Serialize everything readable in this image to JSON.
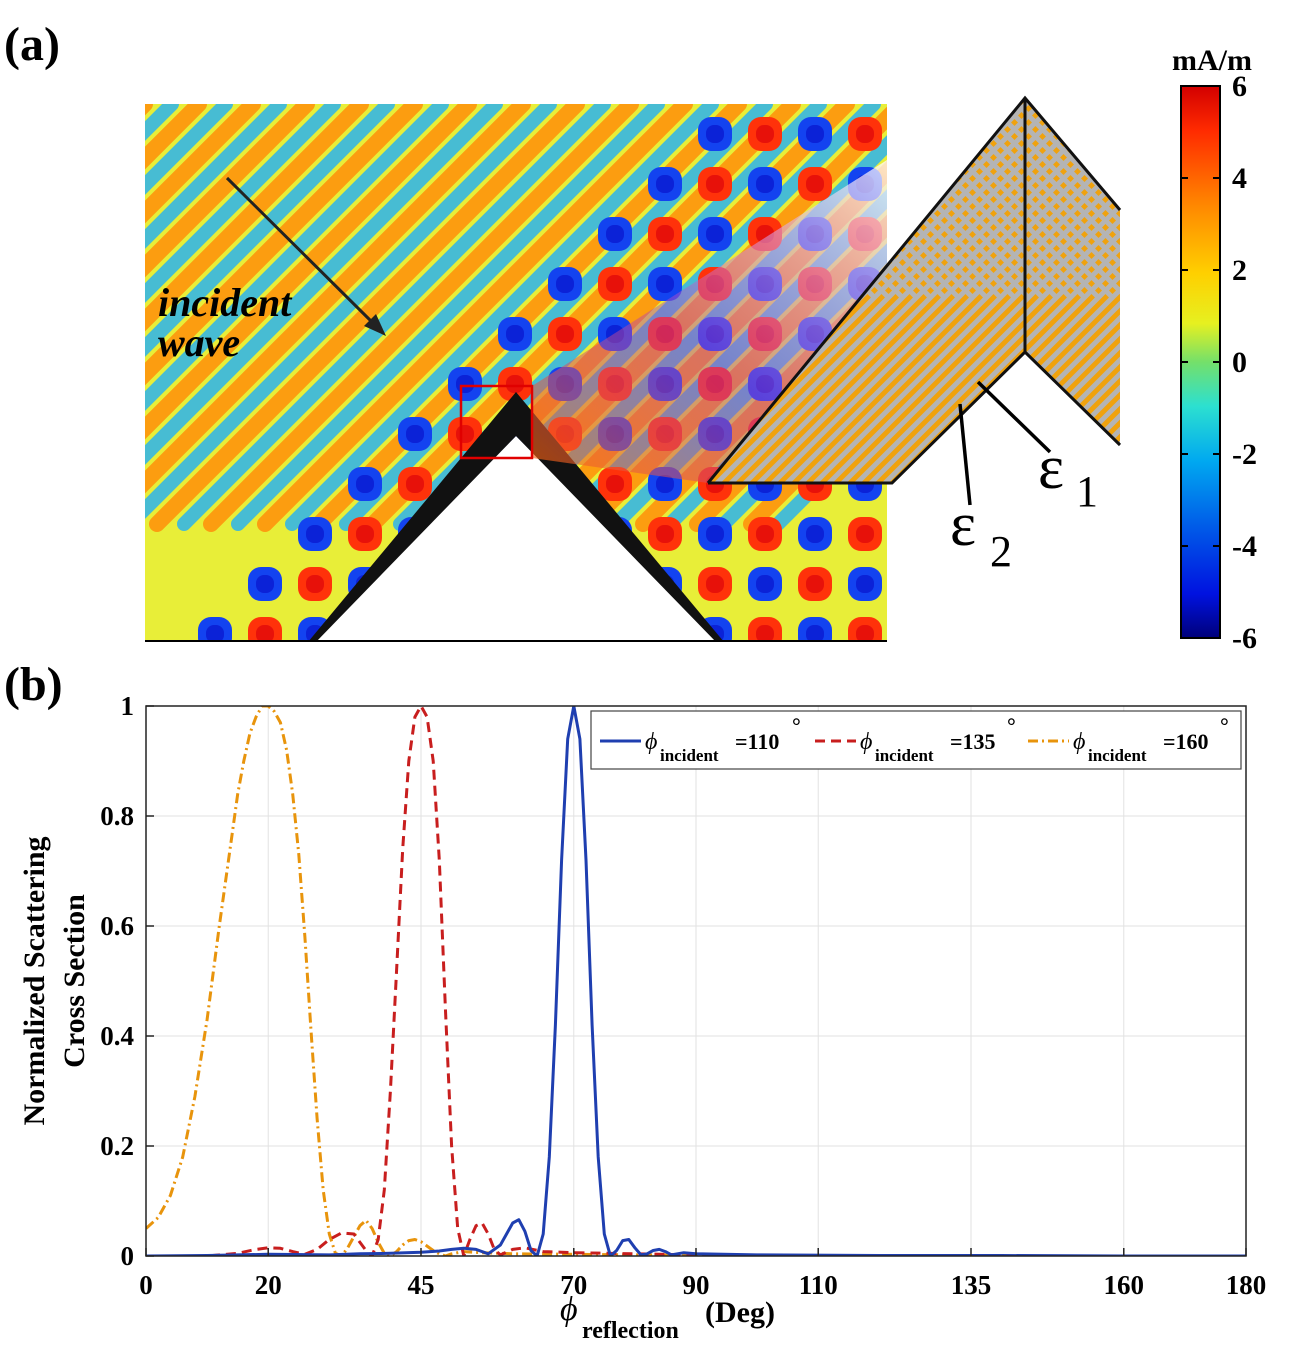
{
  "panel_a": {
    "label": "(a)",
    "annotation_line1": "incident",
    "annotation_line2": "wave",
    "eps1_symbol": "ε",
    "eps1_sub": "1",
    "eps2_symbol": "ε",
    "eps2_sub": "2",
    "colorbar": {
      "unit": "mA/m",
      "min": -6,
      "max": 6,
      "ticks": [
        "6",
        "4",
        "2",
        "0",
        "-2",
        "-4",
        "-6"
      ],
      "tick_values": [
        6,
        4,
        2,
        0,
        -2,
        -4,
        -6
      ]
    },
    "colors": {
      "stripe_orange": "#f0a20d",
      "stripe_gray": "#b4b4b4",
      "zoom_box": "#e00000",
      "wedge": "#111111"
    }
  },
  "panel_b": {
    "label": "(b)",
    "colors": {
      "series_110": "#1f3fb0",
      "series_135": "#c81e1e",
      "series_160": "#e8940c"
    },
    "legend": [
      {
        "phi": "ϕ",
        "sub": "incident",
        "text": "=110",
        "deg": "°"
      },
      {
        "phi": "ϕ",
        "sub": "incident",
        "text": "=135",
        "deg": "°"
      },
      {
        "phi": "ϕ",
        "sub": "incident",
        "text": "=160",
        "deg": "°"
      }
    ],
    "ylabel_line1": "Normalized Scattering",
    "ylabel_line2": "Cross Section",
    "xlabel_phi": "ϕ",
    "xlabel_sub": "reflection",
    "xlabel_unit": "(Deg)"
  },
  "chart_data": {
    "type": "line",
    "title": "",
    "xlabel": "ϕ_reflection (Deg)",
    "ylabel": "Normalized Scattering Cross Section",
    "xlim": [
      0,
      180
    ],
    "ylim": [
      0,
      1
    ],
    "xticks": [
      0,
      20,
      45,
      70,
      90,
      110,
      135,
      160,
      180
    ],
    "xtick_labels": [
      "0",
      "20",
      "45",
      "70",
      "90",
      "110",
      "135",
      "160",
      "180"
    ],
    "yticks": [
      0,
      0.2,
      0.4,
      0.6,
      0.8,
      1
    ],
    "ytick_labels": [
      "0",
      "0.2",
      "0.4",
      "0.6",
      "0.8",
      "1"
    ],
    "grid": true,
    "legend_position": "top-right",
    "series": [
      {
        "name": "ϕincident=110°",
        "style": "solid",
        "x": [
          0,
          10,
          20,
          30,
          35,
          40,
          45,
          48,
          50,
          52,
          54,
          56,
          58,
          60,
          61,
          62,
          63,
          64,
          65,
          66,
          67,
          68,
          69,
          70,
          71,
          72,
          73,
          74,
          75,
          76,
          77,
          78,
          79,
          80,
          81,
          82,
          83,
          84,
          85,
          86,
          88,
          90,
          100,
          120,
          140,
          160,
          180
        ],
        "y": [
          0,
          0.001,
          0.003,
          0.002,
          0.004,
          0.005,
          0.007,
          0.009,
          0.012,
          0.014,
          0.012,
          0.004,
          0.02,
          0.06,
          0.066,
          0.045,
          0.01,
          0.0,
          0.04,
          0.18,
          0.42,
          0.72,
          0.94,
          1.0,
          0.94,
          0.72,
          0.42,
          0.18,
          0.04,
          0.0,
          0.01,
          0.028,
          0.03,
          0.015,
          0.002,
          0.004,
          0.01,
          0.012,
          0.008,
          0.002,
          0.006,
          0.004,
          0.002,
          0.001,
          0.001,
          0.0,
          0.0
        ]
      },
      {
        "name": "ϕincident=135°",
        "style": "dashed",
        "x": [
          0,
          10,
          15,
          18,
          20,
          22,
          24,
          26,
          28,
          30,
          32,
          34,
          36,
          37,
          38,
          39,
          40,
          41,
          42,
          43,
          44,
          45,
          46,
          47,
          48,
          49,
          50,
          51,
          52,
          53,
          54,
          55,
          56,
          57,
          58,
          60,
          62,
          65,
          70,
          80,
          90,
          100,
          120,
          140,
          160,
          180
        ],
        "y": [
          0,
          0.0,
          0.005,
          0.012,
          0.015,
          0.014,
          0.008,
          0.003,
          0.012,
          0.03,
          0.042,
          0.04,
          0.01,
          0.0,
          0.03,
          0.12,
          0.3,
          0.52,
          0.74,
          0.9,
          0.98,
          1.0,
          0.98,
          0.9,
          0.72,
          0.45,
          0.2,
          0.05,
          0.0,
          0.03,
          0.055,
          0.06,
          0.04,
          0.012,
          0.002,
          0.012,
          0.015,
          0.008,
          0.006,
          0.004,
          0.002,
          0.001,
          0.001,
          0.0,
          0.0,
          0.0
        ]
      },
      {
        "name": "ϕincident=160°",
        "style": "dashdot",
        "x": [
          0,
          2,
          4,
          6,
          8,
          10,
          12,
          14,
          15,
          16,
          17,
          18,
          19,
          20,
          21,
          22,
          23,
          24,
          25,
          26,
          27,
          28,
          29,
          30,
          31,
          32,
          33,
          34,
          35,
          36,
          37,
          38,
          39,
          40,
          41,
          42,
          43,
          44,
          45,
          46,
          47,
          48,
          49,
          50,
          52,
          55,
          60,
          70,
          80,
          90,
          100,
          120,
          140,
          160,
          180
        ],
        "y": [
          0.05,
          0.07,
          0.11,
          0.18,
          0.29,
          0.43,
          0.6,
          0.76,
          0.84,
          0.9,
          0.95,
          0.98,
          1.0,
          1.0,
          0.99,
          0.97,
          0.92,
          0.84,
          0.73,
          0.58,
          0.41,
          0.25,
          0.12,
          0.04,
          0.005,
          0.0,
          0.015,
          0.035,
          0.055,
          0.065,
          0.05,
          0.025,
          0.005,
          0.0,
          0.008,
          0.02,
          0.028,
          0.03,
          0.026,
          0.018,
          0.01,
          0.004,
          0.0,
          0.004,
          0.008,
          0.006,
          0.004,
          0.003,
          0.002,
          0.002,
          0.001,
          0.001,
          0.0,
          0.0,
          0.0
        ]
      }
    ]
  }
}
